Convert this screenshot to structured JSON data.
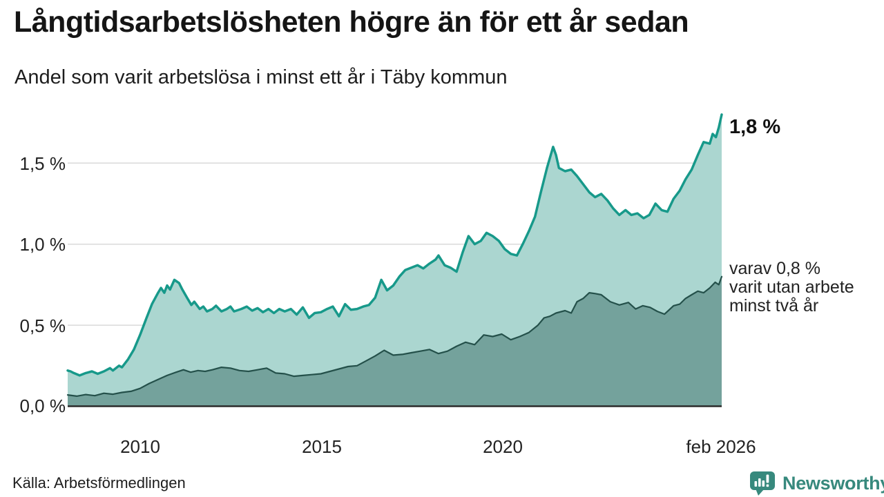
{
  "header": {
    "title": "Långtidsarbetslösheten högre än för ett år sedan",
    "subtitle": "Andel som varit arbetslösa i minst ett år i Täby kommun"
  },
  "annotations": {
    "latest_value_label": "1,8 %",
    "secondary_line1": "varav 0,8 %",
    "secondary_line2": "varit utan arbete",
    "secondary_line3": "minst två år"
  },
  "footer": {
    "source": "Källa: Arbetsförmedlingen",
    "brand": "Newsworthy",
    "brand_color": "#37897d",
    "brand_icon": "speech-bubble-bar-chart"
  },
  "chart_data": {
    "type": "area",
    "title": "Långtidsarbetslösheten högre än för ett år sedan",
    "subtitle": "Andel som varit arbetslösa i minst ett år i Täby kommun",
    "unit": "percent",
    "grid": true,
    "legend_position": "direct-labels-right",
    "x_range": [
      2008.0,
      2026.08
    ],
    "y_range": [
      0,
      1.9
    ],
    "x_ticks": [
      {
        "value": 2010,
        "label": "2010"
      },
      {
        "value": 2015,
        "label": "2015"
      },
      {
        "value": 2020,
        "label": "2020"
      },
      {
        "value": 2026.08,
        "label": "feb 2026"
      }
    ],
    "y_ticks": [
      {
        "value": 0.0,
        "label": "0,0 %"
      },
      {
        "value": 0.5,
        "label": "0,5 %"
      },
      {
        "value": 1.0,
        "label": "1,0 %"
      },
      {
        "value": 1.5,
        "label": "1,5 %"
      }
    ],
    "grid_color": "#d9d9d9",
    "axis_color": "#2b2b2b",
    "series": [
      {
        "name": "Andel arbetslösa minst ett år",
        "end_label": "1,8 %",
        "end_value": 1.8,
        "line_color": "#17998a",
        "fill_color": "#abd6d0",
        "points": [
          [
            2008.0,
            0.22
          ],
          [
            2008.08,
            0.215
          ],
          [
            2008.17,
            0.205
          ],
          [
            2008.33,
            0.19
          ],
          [
            2008.5,
            0.205
          ],
          [
            2008.67,
            0.215
          ],
          [
            2008.83,
            0.2
          ],
          [
            2009.0,
            0.215
          ],
          [
            2009.17,
            0.235
          ],
          [
            2009.25,
            0.22
          ],
          [
            2009.42,
            0.25
          ],
          [
            2009.5,
            0.24
          ],
          [
            2009.67,
            0.29
          ],
          [
            2009.83,
            0.35
          ],
          [
            2010.0,
            0.44
          ],
          [
            2010.17,
            0.54
          ],
          [
            2010.33,
            0.63
          ],
          [
            2010.5,
            0.7
          ],
          [
            2010.58,
            0.73
          ],
          [
            2010.67,
            0.7
          ],
          [
            2010.75,
            0.745
          ],
          [
            2010.83,
            0.72
          ],
          [
            2010.95,
            0.78
          ],
          [
            2011.08,
            0.76
          ],
          [
            2011.17,
            0.72
          ],
          [
            2011.3,
            0.67
          ],
          [
            2011.42,
            0.625
          ],
          [
            2011.5,
            0.645
          ],
          [
            2011.65,
            0.6
          ],
          [
            2011.75,
            0.615
          ],
          [
            2011.85,
            0.585
          ],
          [
            2012.0,
            0.6
          ],
          [
            2012.1,
            0.62
          ],
          [
            2012.25,
            0.585
          ],
          [
            2012.4,
            0.6
          ],
          [
            2012.5,
            0.615
          ],
          [
            2012.6,
            0.585
          ],
          [
            2012.8,
            0.6
          ],
          [
            2012.95,
            0.615
          ],
          [
            2013.1,
            0.59
          ],
          [
            2013.25,
            0.605
          ],
          [
            2013.4,
            0.58
          ],
          [
            2013.55,
            0.6
          ],
          [
            2013.7,
            0.575
          ],
          [
            2013.85,
            0.6
          ],
          [
            2014.0,
            0.585
          ],
          [
            2014.17,
            0.6
          ],
          [
            2014.33,
            0.565
          ],
          [
            2014.5,
            0.61
          ],
          [
            2014.67,
            0.545
          ],
          [
            2014.83,
            0.575
          ],
          [
            2015.0,
            0.58
          ],
          [
            2015.17,
            0.6
          ],
          [
            2015.33,
            0.615
          ],
          [
            2015.5,
            0.555
          ],
          [
            2015.67,
            0.63
          ],
          [
            2015.83,
            0.595
          ],
          [
            2016.0,
            0.6
          ],
          [
            2016.17,
            0.615
          ],
          [
            2016.33,
            0.625
          ],
          [
            2016.5,
            0.67
          ],
          [
            2016.67,
            0.78
          ],
          [
            2016.83,
            0.715
          ],
          [
            2017.0,
            0.745
          ],
          [
            2017.17,
            0.8
          ],
          [
            2017.33,
            0.84
          ],
          [
            2017.5,
            0.855
          ],
          [
            2017.67,
            0.87
          ],
          [
            2017.83,
            0.85
          ],
          [
            2018.0,
            0.88
          ],
          [
            2018.17,
            0.905
          ],
          [
            2018.25,
            0.93
          ],
          [
            2018.42,
            0.87
          ],
          [
            2018.58,
            0.855
          ],
          [
            2018.75,
            0.83
          ],
          [
            2018.92,
            0.95
          ],
          [
            2019.08,
            1.05
          ],
          [
            2019.25,
            1.0
          ],
          [
            2019.42,
            1.02
          ],
          [
            2019.58,
            1.07
          ],
          [
            2019.75,
            1.05
          ],
          [
            2019.92,
            1.02
          ],
          [
            2020.08,
            0.97
          ],
          [
            2020.25,
            0.94
          ],
          [
            2020.42,
            0.93
          ],
          [
            2020.58,
            1.0
          ],
          [
            2020.75,
            1.08
          ],
          [
            2020.92,
            1.17
          ],
          [
            2021.08,
            1.32
          ],
          [
            2021.25,
            1.47
          ],
          [
            2021.42,
            1.6
          ],
          [
            2021.5,
            1.55
          ],
          [
            2021.58,
            1.47
          ],
          [
            2021.75,
            1.45
          ],
          [
            2021.92,
            1.46
          ],
          [
            2022.08,
            1.42
          ],
          [
            2022.25,
            1.37
          ],
          [
            2022.42,
            1.32
          ],
          [
            2022.58,
            1.29
          ],
          [
            2022.75,
            1.31
          ],
          [
            2022.92,
            1.27
          ],
          [
            2023.08,
            1.22
          ],
          [
            2023.25,
            1.18
          ],
          [
            2023.42,
            1.21
          ],
          [
            2023.58,
            1.18
          ],
          [
            2023.75,
            1.19
          ],
          [
            2023.92,
            1.16
          ],
          [
            2024.08,
            1.18
          ],
          [
            2024.25,
            1.25
          ],
          [
            2024.42,
            1.21
          ],
          [
            2024.58,
            1.2
          ],
          [
            2024.75,
            1.28
          ],
          [
            2024.92,
            1.33
          ],
          [
            2025.08,
            1.4
          ],
          [
            2025.25,
            1.46
          ],
          [
            2025.42,
            1.55
          ],
          [
            2025.58,
            1.63
          ],
          [
            2025.75,
            1.62
          ],
          [
            2025.83,
            1.68
          ],
          [
            2025.92,
            1.66
          ],
          [
            2026.0,
            1.72
          ],
          [
            2026.08,
            1.8
          ]
        ]
      },
      {
        "name": "Andel arbetslösa minst två år",
        "end_label": "varav 0,8 % varit utan arbete minst två år",
        "end_value": 0.8,
        "line_color": "#24504a",
        "fill_color": "#74a29c",
        "points": [
          [
            2008.0,
            0.07
          ],
          [
            2008.25,
            0.062
          ],
          [
            2008.5,
            0.072
          ],
          [
            2008.75,
            0.065
          ],
          [
            2009.0,
            0.08
          ],
          [
            2009.25,
            0.074
          ],
          [
            2009.5,
            0.085
          ],
          [
            2009.75,
            0.092
          ],
          [
            2010.0,
            0.11
          ],
          [
            2010.25,
            0.14
          ],
          [
            2010.5,
            0.165
          ],
          [
            2010.75,
            0.19
          ],
          [
            2011.0,
            0.21
          ],
          [
            2011.2,
            0.225
          ],
          [
            2011.4,
            0.21
          ],
          [
            2011.6,
            0.22
          ],
          [
            2011.8,
            0.215
          ],
          [
            2012.0,
            0.225
          ],
          [
            2012.25,
            0.24
          ],
          [
            2012.5,
            0.235
          ],
          [
            2012.75,
            0.22
          ],
          [
            2013.0,
            0.215
          ],
          [
            2013.25,
            0.225
          ],
          [
            2013.5,
            0.235
          ],
          [
            2013.75,
            0.205
          ],
          [
            2014.0,
            0.2
          ],
          [
            2014.25,
            0.185
          ],
          [
            2014.5,
            0.19
          ],
          [
            2014.75,
            0.195
          ],
          [
            2015.0,
            0.2
          ],
          [
            2015.25,
            0.215
          ],
          [
            2015.5,
            0.23
          ],
          [
            2015.75,
            0.245
          ],
          [
            2016.0,
            0.25
          ],
          [
            2016.25,
            0.28
          ],
          [
            2016.5,
            0.31
          ],
          [
            2016.75,
            0.345
          ],
          [
            2017.0,
            0.315
          ],
          [
            2017.25,
            0.32
          ],
          [
            2017.5,
            0.33
          ],
          [
            2017.75,
            0.34
          ],
          [
            2018.0,
            0.35
          ],
          [
            2018.25,
            0.325
          ],
          [
            2018.5,
            0.34
          ],
          [
            2018.75,
            0.37
          ],
          [
            2019.0,
            0.395
          ],
          [
            2019.25,
            0.38
          ],
          [
            2019.5,
            0.44
          ],
          [
            2019.75,
            0.43
          ],
          [
            2020.0,
            0.445
          ],
          [
            2020.25,
            0.41
          ],
          [
            2020.5,
            0.43
          ],
          [
            2020.75,
            0.455
          ],
          [
            2021.0,
            0.5
          ],
          [
            2021.17,
            0.545
          ],
          [
            2021.33,
            0.555
          ],
          [
            2021.5,
            0.575
          ],
          [
            2021.75,
            0.59
          ],
          [
            2021.92,
            0.575
          ],
          [
            2022.08,
            0.645
          ],
          [
            2022.25,
            0.665
          ],
          [
            2022.42,
            0.7
          ],
          [
            2022.58,
            0.695
          ],
          [
            2022.75,
            0.688
          ],
          [
            2023.0,
            0.645
          ],
          [
            2023.25,
            0.625
          ],
          [
            2023.5,
            0.64
          ],
          [
            2023.7,
            0.6
          ],
          [
            2023.9,
            0.62
          ],
          [
            2024.1,
            0.61
          ],
          [
            2024.3,
            0.585
          ],
          [
            2024.5,
            0.568
          ],
          [
            2024.75,
            0.62
          ],
          [
            2024.92,
            0.63
          ],
          [
            2025.08,
            0.665
          ],
          [
            2025.25,
            0.688
          ],
          [
            2025.42,
            0.71
          ],
          [
            2025.58,
            0.7
          ],
          [
            2025.75,
            0.73
          ],
          [
            2025.9,
            0.765
          ],
          [
            2026.0,
            0.75
          ],
          [
            2026.08,
            0.8
          ]
        ]
      }
    ]
  }
}
